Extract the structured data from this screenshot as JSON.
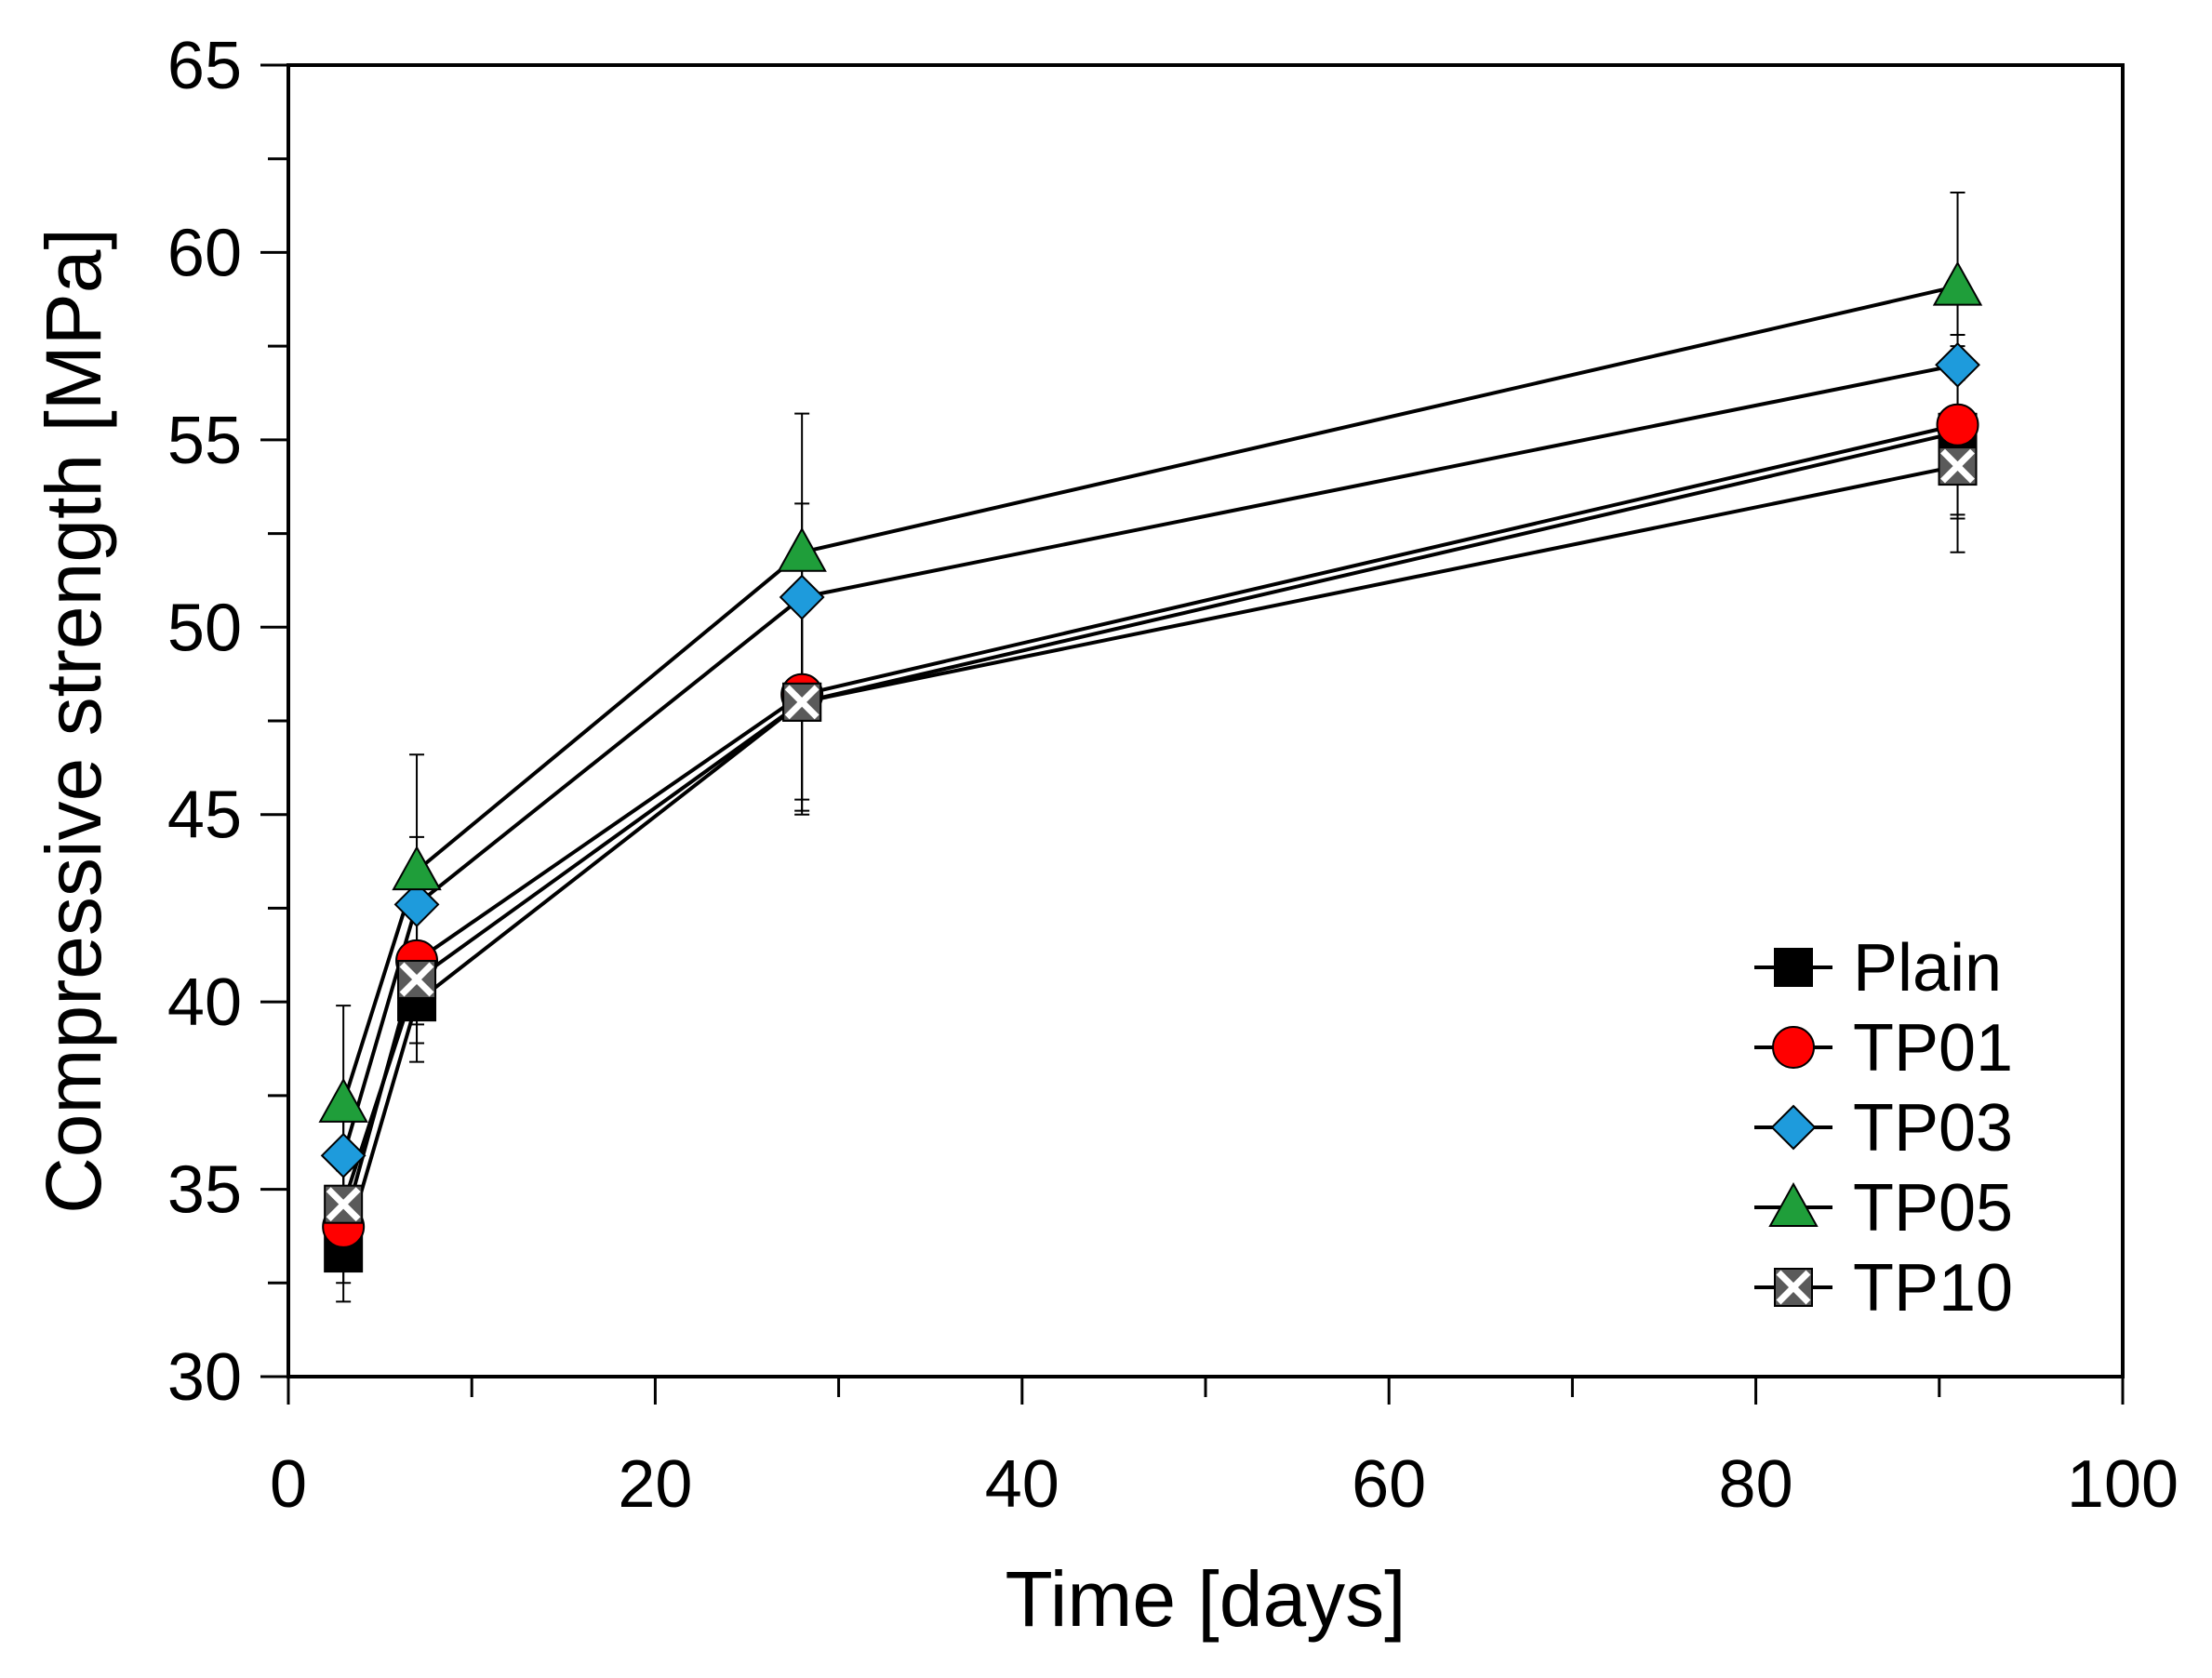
{
  "chart_data": {
    "type": "line",
    "title": "",
    "xlabel": "Time [days]",
    "ylabel": "Compressive strength [MPa]",
    "xlim": [
      0,
      100
    ],
    "ylim": [
      30,
      65
    ],
    "x_ticks": [
      0,
      20,
      40,
      60,
      80,
      100
    ],
    "x_minor_step": 10,
    "y_ticks": [
      30,
      35,
      40,
      45,
      50,
      55,
      60,
      65
    ],
    "y_minor_step": 2.5,
    "grid": false,
    "legend_position": "bottom-right",
    "x": [
      3,
      7,
      28,
      91
    ],
    "series": [
      {
        "name": "Plain",
        "marker": "square",
        "color": "#000000",
        "values": [
          33.3,
          40.0,
          48.0,
          55.2
        ],
        "errors": [
          1.3,
          1.6,
          2.9,
          2.3
        ]
      },
      {
        "name": "TP01",
        "marker": "circle",
        "color": "#ff0000",
        "values": [
          34.0,
          41.1,
          48.2,
          55.4
        ],
        "errors": [
          1.5,
          1.7,
          2.8,
          2.4
        ]
      },
      {
        "name": "TP03",
        "marker": "diamond",
        "color": "#1e9bdc",
        "values": [
          35.9,
          42.6,
          50.8,
          57.0
        ],
        "errors": [
          1.6,
          1.8,
          2.5,
          2.0
        ]
      },
      {
        "name": "TP05",
        "marker": "triangle",
        "color": "#1f9e3a",
        "values": [
          37.3,
          43.5,
          52.0,
          59.1
        ],
        "errors": [
          2.6,
          3.1,
          3.7,
          2.5
        ]
      },
      {
        "name": "TP10",
        "marker": "x-square",
        "color": "#5a5a5a",
        "values": [
          34.6,
          40.6,
          48.0,
          54.3
        ],
        "errors": [
          1.4,
          1.7,
          3.0,
          2.3
        ]
      }
    ]
  }
}
